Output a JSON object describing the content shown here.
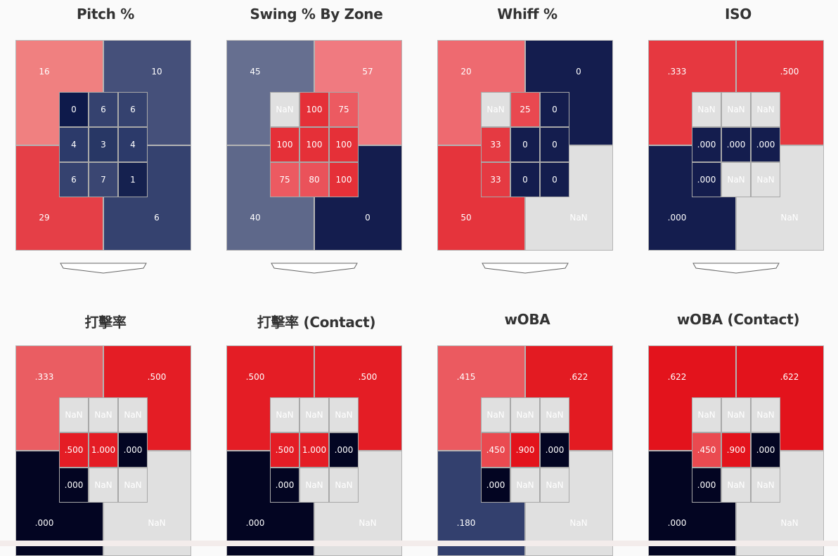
{
  "colors": {
    "nan": "#e0e0e0",
    "red_max": "#e3131c",
    "navy_max": "#000020"
  },
  "panels": [
    {
      "title": "Pitch %",
      "outer": [
        {
          "label": "16",
          "color": "#f08080"
        },
        {
          "label": "10",
          "color": "#45507a"
        },
        {
          "label": "29",
          "color": "#e53f47"
        },
        {
          "label": "6",
          "color": "#35426f"
        }
      ],
      "cells": [
        {
          "label": "0",
          "color": "#0e1a4b"
        },
        {
          "label": "6",
          "color": "#35426f"
        },
        {
          "label": "6",
          "color": "#35426f"
        },
        {
          "label": "4",
          "color": "#2c3a6a"
        },
        {
          "label": "3",
          "color": "#283765"
        },
        {
          "label": "4",
          "color": "#2c3a6a"
        },
        {
          "label": "6",
          "color": "#35426f"
        },
        {
          "label": "7",
          "color": "#3a4672"
        },
        {
          "label": "1",
          "color": "#15214f"
        }
      ]
    },
    {
      "title": "Swing % By Zone",
      "outer": [
        {
          "label": "45",
          "color": "#666f90"
        },
        {
          "label": "57",
          "color": "#f07a80"
        },
        {
          "label": "40",
          "color": "#5e688a"
        },
        {
          "label": "0",
          "color": "#141d4e"
        }
      ],
      "cells": [
        {
          "label": "NaN",
          "color": "#e0e0e0"
        },
        {
          "label": "100",
          "color": "#e53038"
        },
        {
          "label": "75",
          "color": "#ec5a61"
        },
        {
          "label": "100",
          "color": "#e53038"
        },
        {
          "label": "100",
          "color": "#e53038"
        },
        {
          "label": "100",
          "color": "#e53038"
        },
        {
          "label": "75",
          "color": "#ec5a61"
        },
        {
          "label": "80",
          "color": "#ea525a"
        },
        {
          "label": "100",
          "color": "#e53038"
        }
      ]
    },
    {
      "title": "Whiff %",
      "outer": [
        {
          "label": "20",
          "color": "#ee6a70"
        },
        {
          "label": "0",
          "color": "#141d4e"
        },
        {
          "label": "50",
          "color": "#e5343c"
        },
        {
          "label": "NaN",
          "color": "#e0e0e0"
        }
      ],
      "cells": [
        {
          "label": "NaN",
          "color": "#e0e0e0"
        },
        {
          "label": "25",
          "color": "#e94850"
        },
        {
          "label": "0",
          "color": "#141d4e"
        },
        {
          "label": "33",
          "color": "#e53a42"
        },
        {
          "label": "0",
          "color": "#141d4e"
        },
        {
          "label": "0",
          "color": "#141d4e"
        },
        {
          "label": "33",
          "color": "#e53a42"
        },
        {
          "label": "0",
          "color": "#141d4e"
        },
        {
          "label": "0",
          "color": "#141d4e"
        }
      ]
    },
    {
      "title": "ISO",
      "outer": [
        {
          "label": ".333",
          "color": "#e63840"
        },
        {
          "label": ".500",
          "color": "#e63840"
        },
        {
          "label": ".000",
          "color": "#141d4e"
        },
        {
          "label": "NaN",
          "color": "#e0e0e0"
        }
      ],
      "cells": [
        {
          "label": "NaN",
          "color": "#e0e0e0"
        },
        {
          "label": "NaN",
          "color": "#e0e0e0"
        },
        {
          "label": "NaN",
          "color": "#e0e0e0"
        },
        {
          "label": ".000",
          "color": "#141d4e"
        },
        {
          "label": ".000",
          "color": "#141d4e"
        },
        {
          "label": ".000",
          "color": "#141d4e"
        },
        {
          "label": ".000",
          "color": "#141d4e"
        },
        {
          "label": "NaN",
          "color": "#e0e0e0"
        },
        {
          "label": "NaN",
          "color": "#e0e0e0"
        }
      ]
    },
    {
      "title": "打擊率",
      "outer": [
        {
          "label": ".333",
          "color": "#ea5d62"
        },
        {
          "label": ".500",
          "color": "#e41d25"
        },
        {
          "label": ".000",
          "color": "#030522"
        },
        {
          "label": "NaN",
          "color": "#e0e0e0"
        }
      ],
      "cells": [
        {
          "label": "NaN",
          "color": "#e0e0e0"
        },
        {
          "label": "NaN",
          "color": "#e0e0e0"
        },
        {
          "label": "NaN",
          "color": "#e0e0e0"
        },
        {
          "label": ".500",
          "color": "#e41d25"
        },
        {
          "label": "1.000",
          "color": "#e41d25"
        },
        {
          "label": ".000",
          "color": "#030522"
        },
        {
          "label": ".000",
          "color": "#030522"
        },
        {
          "label": "NaN",
          "color": "#e0e0e0"
        },
        {
          "label": "NaN",
          "color": "#e0e0e0"
        }
      ]
    },
    {
      "title": "打擊率 (Contact)",
      "outer": [
        {
          "label": ".500",
          "color": "#e41d25"
        },
        {
          "label": ".500",
          "color": "#e41d25"
        },
        {
          "label": ".000",
          "color": "#030522"
        },
        {
          "label": "NaN",
          "color": "#e0e0e0"
        }
      ],
      "cells": [
        {
          "label": "NaN",
          "color": "#e0e0e0"
        },
        {
          "label": "NaN",
          "color": "#e0e0e0"
        },
        {
          "label": "NaN",
          "color": "#e0e0e0"
        },
        {
          "label": ".500",
          "color": "#e41d25"
        },
        {
          "label": "1.000",
          "color": "#e41d25"
        },
        {
          "label": ".000",
          "color": "#030522"
        },
        {
          "label": ".000",
          "color": "#030522"
        },
        {
          "label": "NaN",
          "color": "#e0e0e0"
        },
        {
          "label": "NaN",
          "color": "#e0e0e0"
        }
      ]
    },
    {
      "title": "wOBA",
      "outer": [
        {
          "label": ".415",
          "color": "#eb5a60"
        },
        {
          "label": ".622",
          "color": "#e31b22"
        },
        {
          "label": ".180",
          "color": "#33406e"
        },
        {
          "label": "NaN",
          "color": "#e0e0e0"
        }
      ],
      "cells": [
        {
          "label": "NaN",
          "color": "#e0e0e0"
        },
        {
          "label": "NaN",
          "color": "#e0e0e0"
        },
        {
          "label": "NaN",
          "color": "#e0e0e0"
        },
        {
          "label": ".450",
          "color": "#ea4a50"
        },
        {
          "label": ".900",
          "color": "#e3131c"
        },
        {
          "label": ".000",
          "color": "#030522"
        },
        {
          "label": ".000",
          "color": "#030522"
        },
        {
          "label": "NaN",
          "color": "#e0e0e0"
        },
        {
          "label": "NaN",
          "color": "#e0e0e0"
        }
      ]
    },
    {
      "title": "wOBA (Contact)",
      "outer": [
        {
          "label": ".622",
          "color": "#e3131c"
        },
        {
          "label": ".622",
          "color": "#e3131c"
        },
        {
          "label": ".000",
          "color": "#030522"
        },
        {
          "label": "NaN",
          "color": "#e0e0e0"
        }
      ],
      "cells": [
        {
          "label": "NaN",
          "color": "#e0e0e0"
        },
        {
          "label": "NaN",
          "color": "#e0e0e0"
        },
        {
          "label": "NaN",
          "color": "#e0e0e0"
        },
        {
          "label": ".450",
          "color": "#ea4a50"
        },
        {
          "label": ".900",
          "color": "#e3131c"
        },
        {
          "label": ".000",
          "color": "#030522"
        },
        {
          "label": ".000",
          "color": "#030522"
        },
        {
          "label": "NaN",
          "color": "#e0e0e0"
        },
        {
          "label": "NaN",
          "color": "#e0e0e0"
        }
      ]
    }
  ],
  "chart_data": [
    {
      "type": "heatmap",
      "title": "Pitch %",
      "outer": {
        "top_left": 16,
        "top_right": 10,
        "bottom_left": 29,
        "bottom_right": 6
      },
      "zones": [
        [
          0,
          6,
          6
        ],
        [
          4,
          3,
          4
        ],
        [
          6,
          7,
          1
        ]
      ]
    },
    {
      "type": "heatmap",
      "title": "Swing % By Zone",
      "outer": {
        "top_left": 45,
        "top_right": 57,
        "bottom_left": 40,
        "bottom_right": 0
      },
      "zones": [
        [
          null,
          100,
          75
        ],
        [
          100,
          100,
          100
        ],
        [
          75,
          80,
          100
        ]
      ]
    },
    {
      "type": "heatmap",
      "title": "Whiff %",
      "outer": {
        "top_left": 20,
        "top_right": 0,
        "bottom_left": 50,
        "bottom_right": null
      },
      "zones": [
        [
          null,
          25,
          0
        ],
        [
          33,
          0,
          0
        ],
        [
          33,
          0,
          0
        ]
      ]
    },
    {
      "type": "heatmap",
      "title": "ISO",
      "outer": {
        "top_left": 0.333,
        "top_right": 0.5,
        "bottom_left": 0.0,
        "bottom_right": null
      },
      "zones": [
        [
          null,
          null,
          null
        ],
        [
          0.0,
          0.0,
          0.0
        ],
        [
          0.0,
          null,
          null
        ]
      ]
    },
    {
      "type": "heatmap",
      "title": "打擊率",
      "outer": {
        "top_left": 0.333,
        "top_right": 0.5,
        "bottom_left": 0.0,
        "bottom_right": null
      },
      "zones": [
        [
          null,
          null,
          null
        ],
        [
          0.5,
          1.0,
          0.0
        ],
        [
          0.0,
          null,
          null
        ]
      ]
    },
    {
      "type": "heatmap",
      "title": "打擊率 (Contact)",
      "outer": {
        "top_left": 0.5,
        "top_right": 0.5,
        "bottom_left": 0.0,
        "bottom_right": null
      },
      "zones": [
        [
          null,
          null,
          null
        ],
        [
          0.5,
          1.0,
          0.0
        ],
        [
          0.0,
          null,
          null
        ]
      ]
    },
    {
      "type": "heatmap",
      "title": "wOBA",
      "outer": {
        "top_left": 0.415,
        "top_right": 0.622,
        "bottom_left": 0.18,
        "bottom_right": null
      },
      "zones": [
        [
          null,
          null,
          null
        ],
        [
          0.45,
          0.9,
          0.0
        ],
        [
          0.0,
          null,
          null
        ]
      ]
    },
    {
      "type": "heatmap",
      "title": "wOBA (Contact)",
      "outer": {
        "top_left": 0.622,
        "top_right": 0.622,
        "bottom_left": 0.0,
        "bottom_right": null
      },
      "zones": [
        [
          null,
          null,
          null
        ],
        [
          0.45,
          0.9,
          0.0
        ],
        [
          0.0,
          null,
          null
        ]
      ]
    }
  ]
}
